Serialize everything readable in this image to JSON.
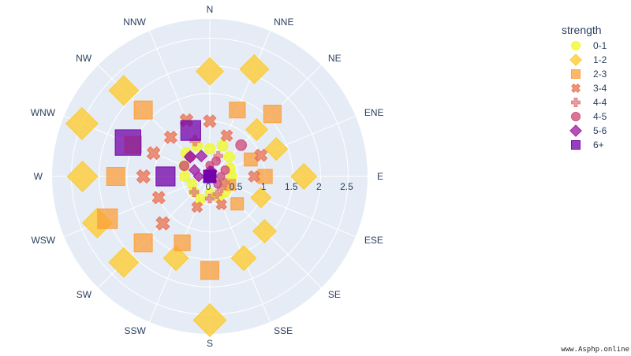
{
  "chart_data": {
    "type": "scatter_polar",
    "angular_axis": {
      "direction": "clockwise",
      "rotation": 90,
      "categories": [
        "N",
        "NNE",
        "NE",
        "ENE",
        "E",
        "ESE",
        "SE",
        "SSE",
        "S",
        "SSW",
        "SW",
        "WSW",
        "W",
        "WNW",
        "NW",
        "NNW"
      ]
    },
    "radial_axis": {
      "range": [
        0,
        2.85
      ],
      "tickvals": [
        0,
        0.5,
        1,
        1.5,
        2,
        2.5
      ],
      "ticktext": [
        "0",
        "0.5",
        "1",
        "1.5",
        "2",
        "2.5"
      ]
    },
    "legend": {
      "title": "strength",
      "placement": "right"
    },
    "series": [
      {
        "name": "0-1",
        "symbol": "circle",
        "color": "#f0f921",
        "size_max": 1.0,
        "points": [
          {
            "direction": "N",
            "r": 0.5
          },
          {
            "direction": "NNE",
            "r": 0.6
          },
          {
            "direction": "NE",
            "r": 0.5
          },
          {
            "direction": "ENE",
            "r": 0.4
          },
          {
            "direction": "E",
            "r": 0.4
          },
          {
            "direction": "ESE",
            "r": 0.3
          },
          {
            "direction": "SE",
            "r": 0.4
          },
          {
            "direction": "SSE",
            "r": 0.4
          },
          {
            "direction": "S",
            "r": 0.3
          },
          {
            "direction": "SSW",
            "r": 0.45
          },
          {
            "direction": "SW",
            "r": 0.4
          },
          {
            "direction": "WSW",
            "r": 0.35
          },
          {
            "direction": "W",
            "r": 0.45
          },
          {
            "direction": "WNW",
            "r": 0.5
          },
          {
            "direction": "NW",
            "r": 0.6
          },
          {
            "direction": "NNW",
            "r": 0.6
          }
        ]
      },
      {
        "name": "1-2",
        "symbol": "diamond",
        "color": "#fdca26",
        "size_max": 1.2,
        "points": [
          {
            "direction": "N",
            "r": 1.9
          },
          {
            "direction": "NNE",
            "r": 2.1
          },
          {
            "direction": "NE",
            "r": 1.2
          },
          {
            "direction": "ENE",
            "r": 1.3
          },
          {
            "direction": "E",
            "r": 1.7
          },
          {
            "direction": "ESE",
            "r": 1.0
          },
          {
            "direction": "SE",
            "r": 1.4
          },
          {
            "direction": "SSE",
            "r": 1.6
          },
          {
            "direction": "S",
            "r": 2.6
          },
          {
            "direction": "SSW",
            "r": 1.6
          },
          {
            "direction": "SW",
            "r": 2.2
          },
          {
            "direction": "WSW",
            "r": 2.2
          },
          {
            "direction": "W",
            "r": 2.3
          },
          {
            "direction": "WNW",
            "r": 2.5
          },
          {
            "direction": "NW",
            "r": 2.2
          },
          {
            "direction": "NNW",
            "r": 0.0
          }
        ]
      },
      {
        "name": "2-3",
        "symbol": "square",
        "color": "#fb9f3a",
        "size_max": 1.1,
        "points": [
          {
            "direction": "N",
            "r": 0.0
          },
          {
            "direction": "NNE",
            "r": 1.3
          },
          {
            "direction": "NE",
            "r": 1.6
          },
          {
            "direction": "ENE",
            "r": 0.8
          },
          {
            "direction": "E",
            "r": 1.0
          },
          {
            "direction": "ESE",
            "r": 0.4
          },
          {
            "direction": "SE",
            "r": 0.7
          },
          {
            "direction": "SSE",
            "r": 0.0
          },
          {
            "direction": "S",
            "r": 1.7
          },
          {
            "direction": "SSW",
            "r": 1.3
          },
          {
            "direction": "SW",
            "r": 1.7
          },
          {
            "direction": "WSW",
            "r": 2.0
          },
          {
            "direction": "W",
            "r": 1.7
          },
          {
            "direction": "WNW",
            "r": 1.5
          },
          {
            "direction": "NW",
            "r": 1.7
          },
          {
            "direction": "NNW",
            "r": 0.0
          }
        ]
      },
      {
        "name": "3-4",
        "symbol": "x",
        "color": "#e8704f",
        "size_max": 1.0,
        "points": [
          {
            "direction": "N",
            "r": 1.0
          },
          {
            "direction": "NNE",
            "r": 0.8
          },
          {
            "direction": "NE",
            "r": 0.0
          },
          {
            "direction": "ENE",
            "r": 1.0
          },
          {
            "direction": "E",
            "r": 0.8
          },
          {
            "direction": "ESE",
            "r": 0.0
          },
          {
            "direction": "SE",
            "r": 0.0
          },
          {
            "direction": "SSE",
            "r": 0.55
          },
          {
            "direction": "S",
            "r": 0.0
          },
          {
            "direction": "SSW",
            "r": 0.6
          },
          {
            "direction": "SW",
            "r": 1.2
          },
          {
            "direction": "WSW",
            "r": 1.0
          },
          {
            "direction": "W",
            "r": 1.2
          },
          {
            "direction": "WNW",
            "r": 1.1
          },
          {
            "direction": "NW",
            "r": 1.0
          },
          {
            "direction": "NNW",
            "r": 1.1
          }
        ]
      },
      {
        "name": "4-4",
        "symbol": "cross",
        "color": "#e07b7b",
        "size_max": 0.9,
        "points": [
          {
            "direction": "N",
            "r": 0.0
          },
          {
            "direction": "NNE",
            "r": 0.4
          },
          {
            "direction": "NE",
            "r": 0.0
          },
          {
            "direction": "ENE",
            "r": 0.0
          },
          {
            "direction": "E",
            "r": 0.0
          },
          {
            "direction": "ESE",
            "r": 0.3
          },
          {
            "direction": "SE",
            "r": 0.3
          },
          {
            "direction": "SSE",
            "r": 0.35
          },
          {
            "direction": "S",
            "r": 0.4
          },
          {
            "direction": "SSW",
            "r": 0.0
          },
          {
            "direction": "SW",
            "r": 0.4
          },
          {
            "direction": "WSW",
            "r": 0.0
          },
          {
            "direction": "W",
            "r": 0.0
          },
          {
            "direction": "WNW",
            "r": 0.0
          },
          {
            "direction": "NW",
            "r": 0.0
          },
          {
            "direction": "NNW",
            "r": 0.7
          }
        ]
      },
      {
        "name": "4-5",
        "symbol": "circle",
        "color": "#cc4778",
        "size_max": 0.9,
        "points": [
          {
            "direction": "N",
            "r": 0.2
          },
          {
            "direction": "NNE",
            "r": 0.3
          },
          {
            "direction": "NE",
            "r": 0.8
          },
          {
            "direction": "ENE",
            "r": 0.3
          },
          {
            "direction": "E",
            "r": 0.2
          },
          {
            "direction": "ESE",
            "r": 0.0
          },
          {
            "direction": "SE",
            "r": 0.2
          },
          {
            "direction": "SSE",
            "r": 0.0
          },
          {
            "direction": "S",
            "r": 0.0
          },
          {
            "direction": "SSW",
            "r": 0.0
          },
          {
            "direction": "SW",
            "r": 0.0
          },
          {
            "direction": "WSW",
            "r": 0.0
          },
          {
            "direction": "W",
            "r": 0.0
          },
          {
            "direction": "WNW",
            "r": 0.5
          },
          {
            "direction": "NW",
            "r": 0.5
          },
          {
            "direction": "NNW",
            "r": 0.0
          }
        ]
      },
      {
        "name": "5-6",
        "symbol": "diamond",
        "color": "#9c179e",
        "size_max": 0.9,
        "points": [
          {
            "direction": "N",
            "r": 0.1
          },
          {
            "direction": "NNE",
            "r": 0.1
          },
          {
            "direction": "NE",
            "r": 0.0
          },
          {
            "direction": "ENE",
            "r": 0.0
          },
          {
            "direction": "E",
            "r": 0.0
          },
          {
            "direction": "ESE",
            "r": 0.0
          },
          {
            "direction": "SE",
            "r": 0.0
          },
          {
            "direction": "SSE",
            "r": 0.0
          },
          {
            "direction": "S",
            "r": 0.0
          },
          {
            "direction": "SSW",
            "r": 0.0
          },
          {
            "direction": "SW",
            "r": 0.0
          },
          {
            "direction": "WSW",
            "r": 0.0
          },
          {
            "direction": "W",
            "r": 0.2
          },
          {
            "direction": "WNW",
            "r": 0.3
          },
          {
            "direction": "NW",
            "r": 0.5
          },
          {
            "direction": "NNW",
            "r": 0.4
          }
        ]
      },
      {
        "name": "6+",
        "symbol": "square",
        "color": "#7201a8",
        "size_max": 1.6,
        "points": [
          {
            "direction": "N",
            "r": 0.0
          },
          {
            "direction": "NNE",
            "r": 0.0
          },
          {
            "direction": "NE",
            "r": 0.0
          },
          {
            "direction": "ENE",
            "r": 0.0
          },
          {
            "direction": "E",
            "r": 0.0
          },
          {
            "direction": "ESE",
            "r": 0.0
          },
          {
            "direction": "SE",
            "r": 0.0
          },
          {
            "direction": "SSE",
            "r": 0.0
          },
          {
            "direction": "S",
            "r": 0.0
          },
          {
            "direction": "SSW",
            "r": 0.0
          },
          {
            "direction": "SW",
            "r": 0.0
          },
          {
            "direction": "WSW",
            "r": 0.0
          },
          {
            "direction": "W",
            "r": 0.8
          },
          {
            "direction": "WNW",
            "r": 1.6
          },
          {
            "direction": "NW",
            "r": 0.0
          },
          {
            "direction": "NNW",
            "r": 0.9
          }
        ]
      }
    ]
  },
  "watermark": "www.Asphp.online"
}
